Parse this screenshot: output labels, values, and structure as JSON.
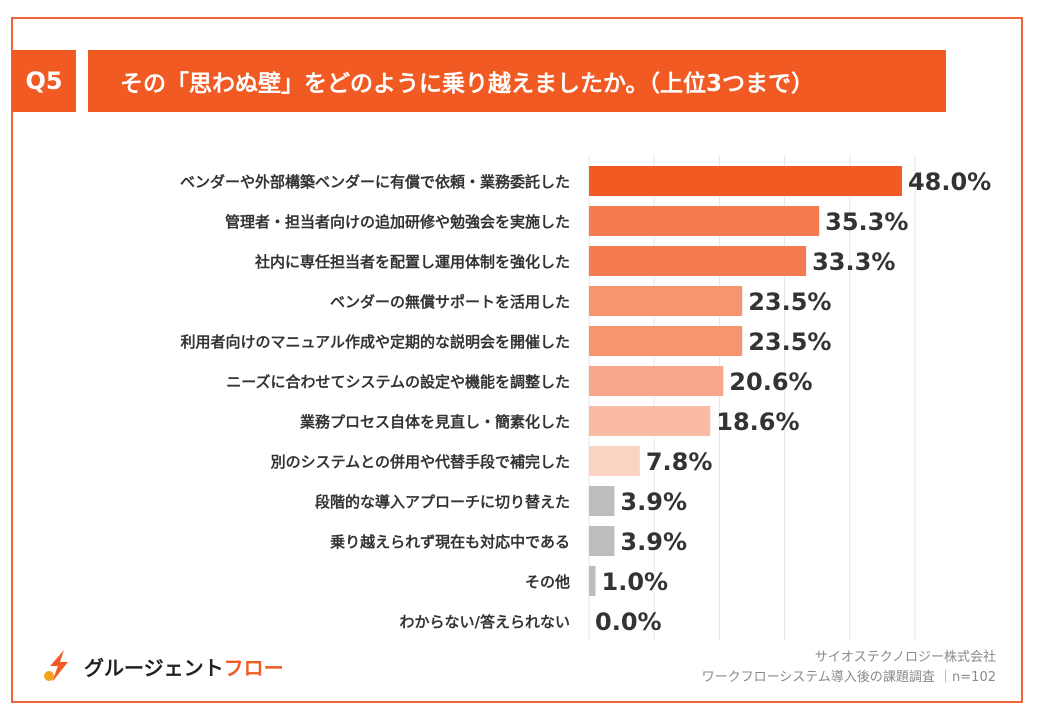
{
  "question": {
    "badge": "Q5",
    "title": "その「思わぬ壁」をどのように乗り越えましたか。（上位3つまで）"
  },
  "chart_data": {
    "type": "bar",
    "orientation": "horizontal",
    "categories": [
      "ベンダーや外部構築ベンダーに有償で依頼・業務委託した",
      "管理者・担当者向けの追加研修や勉強会を実施した",
      "社内に専任担当者を配置し運用体制を強化した",
      "ベンダーの無償サポートを活用した",
      "利用者向けのマニュアル作成や定期的な説明会を開催した",
      "ニーズに合わせてシステムの設定や機能を調整した",
      "業務プロセス自体を見直し・簡素化した",
      "別のシステムとの併用や代替手段で補完した",
      "段階的な導入アプローチに切り替えた",
      "乗り越えられず現在も対応中である",
      "その他",
      "わからない/答えられない"
    ],
    "values": [
      48.0,
      35.3,
      33.3,
      23.5,
      23.5,
      20.6,
      18.6,
      7.8,
      3.9,
      3.9,
      1.0,
      0.0
    ],
    "value_labels": [
      "48.0%",
      "35.3%",
      "33.3%",
      "23.5%",
      "23.5%",
      "20.6%",
      "18.6%",
      "7.8%",
      "3.9%",
      "3.9%",
      "1.0%",
      "0.0%"
    ],
    "colors": [
      "#f15a22",
      "#f47a4f",
      "#f47a4f",
      "#f7956f",
      "#f7956f",
      "#f8a78a",
      "#f9bba4",
      "#fbd3c3",
      "#bdbdbd",
      "#bdbdbd",
      "#bdbdbd",
      "#bdbdbd"
    ],
    "xlim": [
      0,
      50
    ],
    "grid": true
  },
  "footer": {
    "company": "サイオステクノロジー株式会社",
    "survey": "ワークフローシステム導入後の課題調査 ｜n=102"
  },
  "logo": {
    "text_main": "グルージェント",
    "text_accent": "フロー"
  }
}
